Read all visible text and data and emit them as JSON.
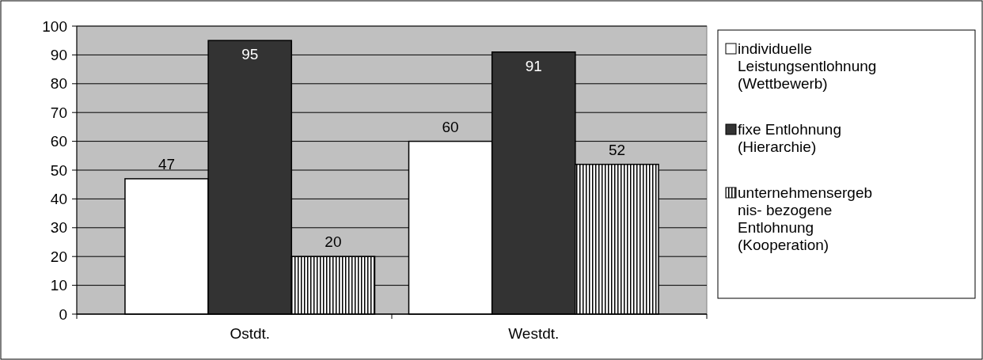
{
  "chart_data": {
    "type": "bar",
    "categories": [
      "Ostdt.",
      "Westdt."
    ],
    "series": [
      {
        "name": "individuelle Leistungsentlohnung (Wettbewerb)",
        "color": "#ffffff",
        "values": [
          47,
          60
        ]
      },
      {
        "name": "fixe Entlohnung (Hierarchie)",
        "color": "#333333",
        "values": [
          95,
          91
        ]
      },
      {
        "name": "unternehmensergebnis- bezogene Entlohnung (Kooperation)",
        "color": "#000000",
        "values": [
          20,
          52
        ]
      }
    ],
    "ylim": [
      0,
      100
    ],
    "yticks": [
      0,
      10,
      20,
      30,
      40,
      50,
      60,
      70,
      80,
      90,
      100
    ],
    "grid": "y",
    "legend": "right",
    "data_labels": true
  }
}
